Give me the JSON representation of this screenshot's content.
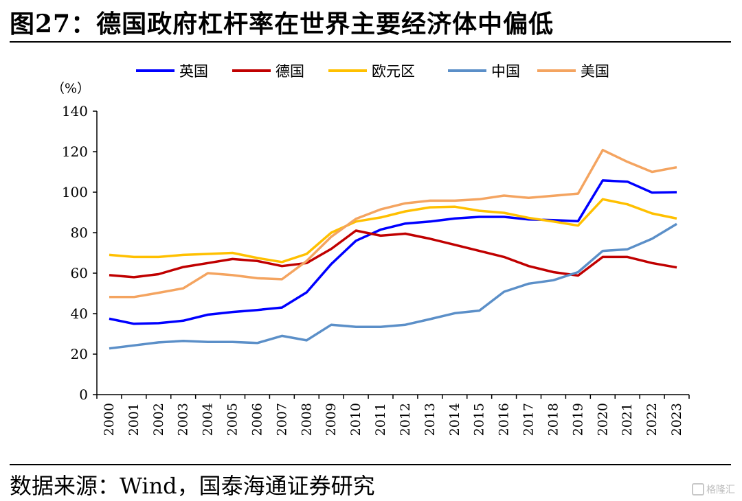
{
  "figure_title": "图27：德国政府杠杆率在世界主要经济体中偏低",
  "source_note": "数据来源：Wind，国泰海通证券研究",
  "watermark": "格隆汇",
  "chart_data": {
    "type": "line",
    "unit_label": "（%）",
    "title": "",
    "xlabel": "",
    "ylabel": "",
    "ylim": [
      0,
      140
    ],
    "yticks": [
      0,
      20,
      40,
      60,
      80,
      100,
      120,
      140
    ],
    "grid": false,
    "legend_position": "top",
    "x": [
      "2000",
      "2001",
      "2002",
      "2003",
      "2004",
      "2005",
      "2006",
      "2007",
      "2008",
      "2009",
      "2010",
      "2011",
      "2012",
      "2013",
      "2014",
      "2015",
      "2016",
      "2017",
      "2018",
      "2019",
      "2020",
      "2021",
      "2022",
      "2023"
    ],
    "series": [
      {
        "name": "英国",
        "color": "#0000FF",
        "values": [
          37.5,
          35,
          35.3,
          36.5,
          39.5,
          40.8,
          41.8,
          43,
          50.5,
          64.5,
          76,
          81.5,
          84.5,
          85.5,
          87,
          87.8,
          87.8,
          86.5,
          86.2,
          85.7,
          105.8,
          105.2,
          99.8,
          100
        ]
      },
      {
        "name": "德国",
        "color": "#C00000",
        "values": [
          59,
          58,
          59.5,
          63,
          65,
          67,
          66,
          63.5,
          65,
          72,
          81,
          78.5,
          79.5,
          77,
          74,
          71,
          68,
          63.5,
          60.5,
          58.8,
          68,
          68,
          65,
          62.8
        ]
      },
      {
        "name": "欧元区",
        "color": "#FFC000",
        "values": [
          69,
          68,
          68,
          69,
          69.5,
          70,
          67.5,
          65.5,
          69.5,
          80,
          85.5,
          87.5,
          90.5,
          92.5,
          92.8,
          90.8,
          89.8,
          87.3,
          85.5,
          83.5,
          96.5,
          94,
          89.5,
          87
        ]
      },
      {
        "name": "中国",
        "color": "#5B8FC8",
        "values": [
          22.8,
          24.3,
          25.8,
          26.5,
          26,
          26,
          25.5,
          29,
          26.8,
          34.5,
          33.5,
          33.5,
          34.5,
          37.3,
          40.2,
          41.5,
          50.8,
          54.8,
          56.5,
          60.5,
          71,
          71.8,
          77,
          84.3
        ]
      },
      {
        "name": "美国",
        "color": "#F4A460",
        "values": [
          48.2,
          48.2,
          50.3,
          52.5,
          60,
          59,
          57.5,
          57,
          66,
          78,
          86.8,
          91.5,
          94.5,
          95.8,
          95.8,
          96.5,
          98.3,
          97.2,
          98.2,
          99.3,
          120.8,
          115,
          110,
          112.3
        ]
      }
    ]
  }
}
